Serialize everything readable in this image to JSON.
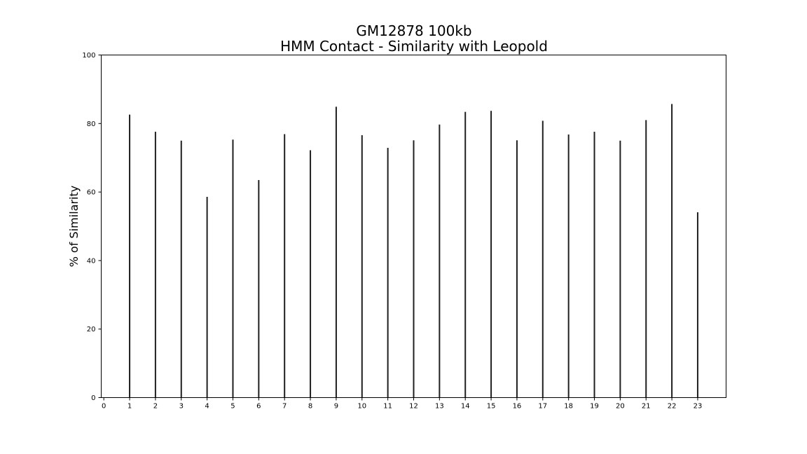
{
  "chart_data": {
    "type": "bar",
    "title_lines": [
      "GM12878 100kb",
      "HMM Contact - Similarity with Leopold"
    ],
    "xlabel": "",
    "ylabel": "% of Similarity",
    "categories": [
      "1",
      "2",
      "3",
      "4",
      "5",
      "6",
      "7",
      "8",
      "9",
      "10",
      "11",
      "12",
      "13",
      "14",
      "15",
      "16",
      "17",
      "18",
      "19",
      "20",
      "21",
      "22",
      "23"
    ],
    "values": [
      82.6,
      77.6,
      75.0,
      58.6,
      75.3,
      63.5,
      76.9,
      72.2,
      84.9,
      76.6,
      72.9,
      75.1,
      79.7,
      83.4,
      83.7,
      75.1,
      80.8,
      76.8,
      77.6,
      75.0,
      81.0,
      85.7,
      54.1
    ],
    "x_ticks": [
      "0",
      "1",
      "2",
      "3",
      "4",
      "5",
      "6",
      "7",
      "8",
      "9",
      "10",
      "11",
      "12",
      "13",
      "14",
      "15",
      "16",
      "17",
      "18",
      "19",
      "20",
      "21",
      "22",
      "23"
    ],
    "y_ticks": [
      "0",
      "20",
      "40",
      "60",
      "80",
      "100"
    ],
    "ylim": [
      0,
      100
    ],
    "xlim": [
      -0.1,
      24.1
    ],
    "grid": false,
    "legend": "none",
    "bar_color": "#1f1f1f"
  }
}
